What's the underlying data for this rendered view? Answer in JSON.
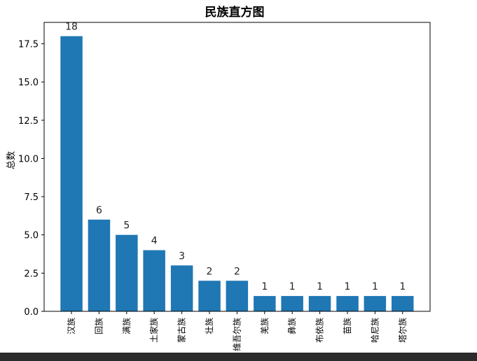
{
  "chart_data": {
    "type": "bar",
    "title": "民族直方图",
    "ylabel": "总数",
    "xlabel": "",
    "categories": [
      "汉族",
      "回族",
      "满族",
      "土家族",
      "蒙古族",
      "壮族",
      "维吾尔族",
      "羌族",
      "彝族",
      "布依族",
      "苗族",
      "哈尼族",
      "塔尔族"
    ],
    "values": [
      18,
      6,
      5,
      4,
      3,
      2,
      2,
      1,
      1,
      1,
      1,
      1,
      1
    ],
    "ylim": [
      0,
      18.9
    ],
    "yticks": [
      "0.0",
      "2.5",
      "5.0",
      "7.5",
      "10.0",
      "12.5",
      "15.0",
      "17.5"
    ],
    "bar_color": "#1f77b4",
    "grid": false,
    "legend": "none"
  }
}
